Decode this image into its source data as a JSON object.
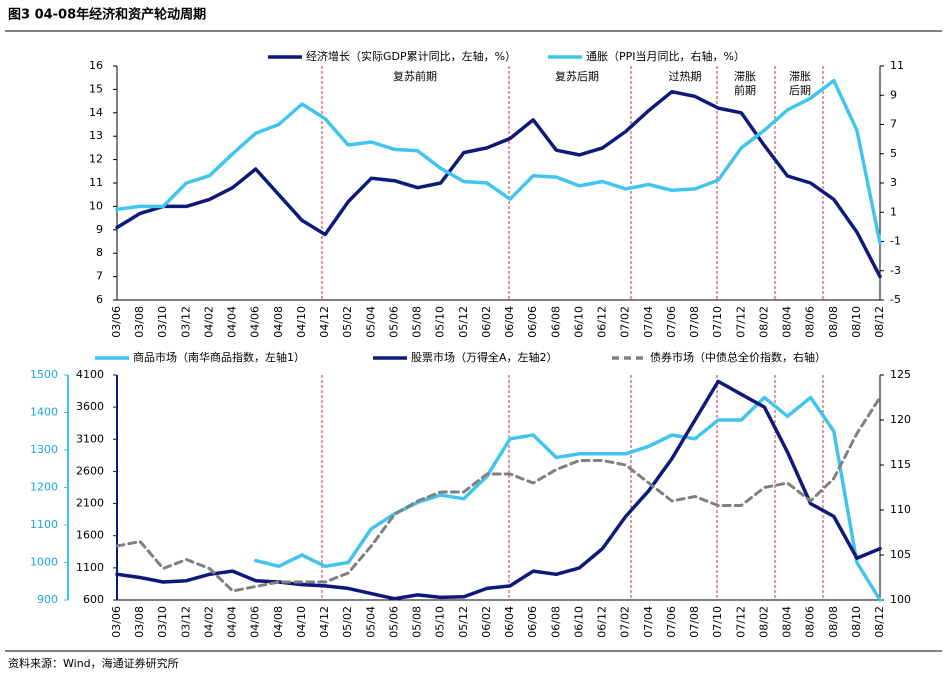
{
  "title": "图3  04-08年经济和资产轮动周期",
  "source": "资料来源：Wind，海通证券研究所",
  "chart_data": [
    {
      "type": "line",
      "categories": [
        "03/06",
        "03/08",
        "03/10",
        "03/12",
        "04/02",
        "04/04",
        "04/06",
        "04/08",
        "04/10",
        "04/12",
        "05/02",
        "05/04",
        "05/06",
        "05/08",
        "05/10",
        "05/12",
        "06/02",
        "06/04",
        "06/06",
        "06/08",
        "06/10",
        "06/12",
        "07/02",
        "07/04",
        "07/06",
        "07/08",
        "07/10",
        "07/12",
        "08/02",
        "08/04",
        "08/06",
        "08/08",
        "08/10",
        "08/12"
      ],
      "series": [
        {
          "name": "经济增长（实际GDP累计同比，左轴，%）",
          "color": "#0d1a7a",
          "axis": "y",
          "values": [
            9.1,
            9.7,
            10.0,
            10.0,
            10.3,
            10.8,
            11.6,
            10.5,
            9.4,
            8.8,
            10.2,
            11.2,
            11.1,
            10.8,
            11.0,
            12.3,
            12.5,
            12.9,
            13.7,
            12.4,
            12.2,
            12.5,
            13.2,
            14.1,
            14.9,
            14.7,
            14.2,
            14.0,
            12.6,
            11.3,
            11.0,
            10.3,
            8.9,
            7.0
          ]
        },
        {
          "name": "通胀（PPI当月同比，右轴，%）",
          "color": "#41c4ee",
          "axis": "y2",
          "values": [
            1.2,
            1.4,
            1.4,
            3.0,
            3.5,
            5.0,
            6.4,
            7.0,
            8.4,
            7.4,
            5.6,
            5.8,
            5.3,
            5.2,
            4.0,
            3.1,
            3.0,
            1.9,
            3.5,
            3.4,
            2.8,
            3.1,
            2.6,
            2.9,
            2.5,
            2.6,
            3.2,
            5.4,
            6.6,
            8.0,
            8.8,
            10.0,
            6.6,
            -1.1
          ]
        }
      ],
      "ylim": [
        6,
        16
      ],
      "yticks": [
        6,
        7,
        8,
        9,
        10,
        11,
        12,
        13,
        14,
        15,
        16
      ],
      "y2lim": [
        -5,
        11
      ],
      "y2ticks": [
        -5,
        -3,
        -1,
        1,
        3,
        5,
        7,
        9,
        11
      ],
      "annotations": [
        "复苏前期",
        "复苏后期",
        "过热期",
        "滞胀前期",
        "滞胀后期"
      ]
    },
    {
      "type": "line",
      "categories": [
        "03/06",
        "03/08",
        "03/10",
        "03/12",
        "04/02",
        "04/04",
        "04/06",
        "04/08",
        "04/10",
        "04/12",
        "05/02",
        "05/04",
        "05/06",
        "05/08",
        "05/10",
        "05/12",
        "06/02",
        "06/04",
        "06/06",
        "06/08",
        "06/10",
        "06/12",
        "07/02",
        "07/04",
        "07/06",
        "07/08",
        "07/10",
        "07/12",
        "08/02",
        "08/04",
        "08/06",
        "08/08",
        "08/10",
        "08/12"
      ],
      "series": [
        {
          "name": "商品市场（南华商品指数，左轴1）",
          "color": "#41c4ee",
          "axis": "y",
          "values": [
            null,
            null,
            null,
            null,
            null,
            null,
            1005,
            990,
            1020,
            990,
            1000,
            1090,
            1130,
            1160,
            1180,
            1170,
            1230,
            1330,
            1340,
            1280,
            1290,
            1290,
            1290,
            1310,
            1340,
            1330,
            1380,
            1380,
            1440,
            1390,
            1440,
            1350,
            1000,
            900
          ]
        },
        {
          "name": "股票市场（万得全A，左轴2）",
          "color": "#0d1a7a",
          "axis": "y2",
          "values": [
            1000,
            950,
            880,
            900,
            1000,
            1050,
            900,
            880,
            840,
            820,
            780,
            700,
            620,
            680,
            640,
            650,
            780,
            820,
            1050,
            1000,
            1100,
            1400,
            1900,
            2300,
            2800,
            3400,
            4000,
            3800,
            3600,
            2900,
            2100,
            1900,
            1250,
            1400
          ]
        },
        {
          "name": "债券市场（中债总全价指数，右轴）",
          "color": "#808080",
          "axis": "y3",
          "dashed": true,
          "values": [
            106,
            106.5,
            103.5,
            104.5,
            103.5,
            101,
            101.5,
            102,
            102,
            102,
            103,
            106,
            109.5,
            111,
            112,
            112,
            114,
            114,
            113,
            114.5,
            115.5,
            115.5,
            115,
            113,
            111,
            111.5,
            110.5,
            110.5,
            112.5,
            113,
            111,
            113.5,
            118.5,
            122.5
          ]
        }
      ],
      "ylim": [
        900,
        1500
      ],
      "yticks": [
        900,
        1000,
        1100,
        1200,
        1300,
        1400,
        1500
      ],
      "y2lim": [
        600,
        4100
      ],
      "y2ticks": [
        600,
        1100,
        1600,
        2100,
        2600,
        3100,
        3600,
        4100
      ],
      "y3lim": [
        100,
        125
      ],
      "y3ticks": [
        100,
        105,
        110,
        115,
        120,
        125
      ]
    }
  ]
}
